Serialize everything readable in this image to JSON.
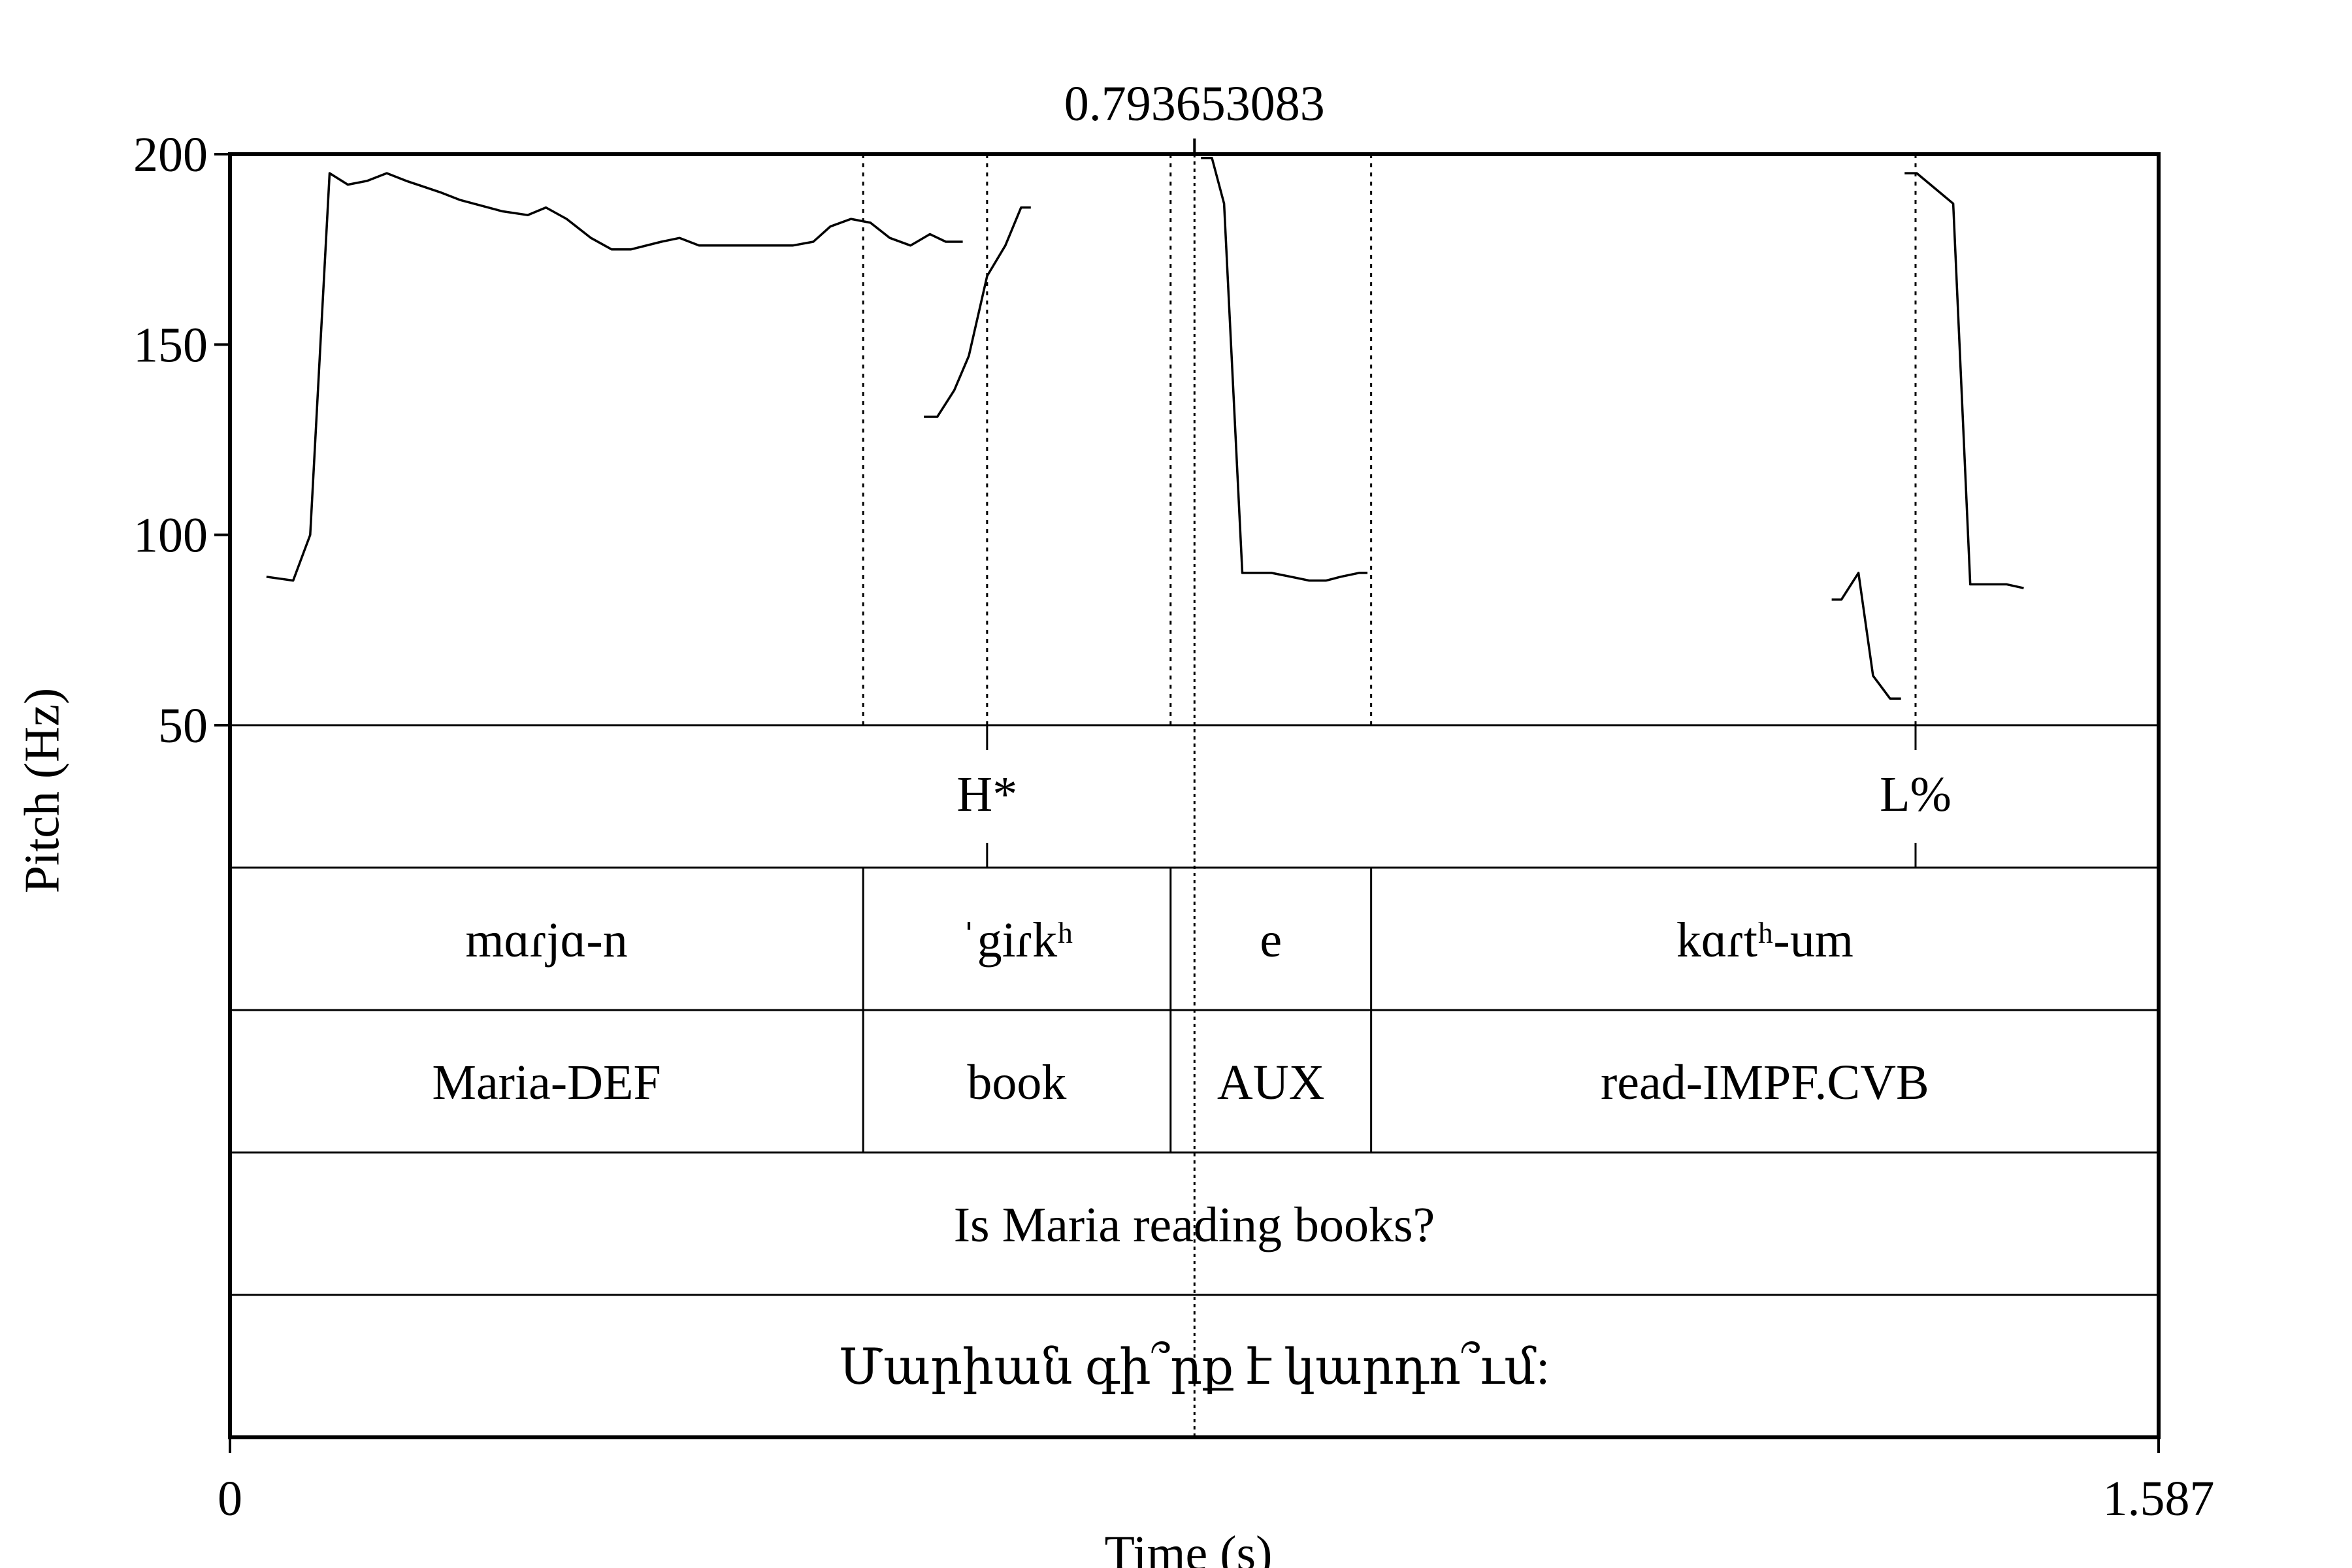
{
  "chart_data": {
    "type": "line",
    "title": "",
    "xlabel": "Time (s)",
    "ylabel": "Pitch (Hz)",
    "xlim": [
      0,
      1.587
    ],
    "ylim": [
      50,
      200
    ],
    "x_tick_labels": [
      "0",
      "1.587"
    ],
    "y_ticks": [
      50,
      100,
      150,
      200
    ],
    "y_tick_labels": [
      "50",
      "100",
      "150",
      "200"
    ],
    "cursor": {
      "time": 0.793653083,
      "label": "0.793653083"
    },
    "series": [
      {
        "points": [
          [
            0.03,
            89
          ],
          [
            0.052,
            88
          ],
          [
            0.066,
            100
          ],
          [
            0.082,
            195
          ],
          [
            0.097,
            192
          ],
          [
            0.113,
            193
          ],
          [
            0.129,
            195
          ],
          [
            0.145,
            193
          ],
          [
            0.173,
            190
          ],
          [
            0.189,
            188
          ],
          [
            0.224,
            185
          ],
          [
            0.245,
            184
          ],
          [
            0.26,
            186
          ],
          [
            0.277,
            183
          ],
          [
            0.297,
            178
          ],
          [
            0.314,
            175
          ],
          [
            0.33,
            175
          ],
          [
            0.355,
            177
          ],
          [
            0.37,
            178
          ],
          [
            0.386,
            176
          ],
          [
            0.417,
            176
          ],
          [
            0.44,
            176
          ],
          [
            0.463,
            176
          ],
          [
            0.48,
            177
          ],
          [
            0.494,
            181
          ],
          [
            0.511,
            183
          ],
          [
            0.527,
            182
          ],
          [
            0.543,
            178
          ],
          [
            0.56,
            176
          ],
          [
            0.576,
            179
          ],
          [
            0.589,
            177
          ],
          [
            0.603,
            177
          ]
        ]
      },
      {
        "points": [
          [
            0.571,
            131
          ],
          [
            0.582,
            131
          ],
          [
            0.596,
            138
          ],
          [
            0.608,
            147
          ],
          [
            0.623,
            168
          ],
          [
            0.638,
            176
          ],
          [
            0.651,
            186
          ],
          [
            0.659,
            186
          ]
        ]
      },
      {
        "points": [
          [
            0.799,
            199
          ],
          [
            0.808,
            199
          ],
          [
            0.818,
            187
          ],
          [
            0.833,
            90
          ],
          [
            0.857,
            90
          ],
          [
            0.873,
            89
          ],
          [
            0.888,
            88
          ],
          [
            0.902,
            88
          ],
          [
            0.914,
            89
          ],
          [
            0.929,
            90
          ],
          [
            0.936,
            90
          ]
        ]
      },
      {
        "points": [
          [
            1.318,
            83
          ],
          [
            1.326,
            83
          ],
          [
            1.34,
            90
          ],
          [
            1.352,
            63
          ],
          [
            1.366,
            57
          ],
          [
            1.375,
            57
          ]
        ]
      },
      {
        "points": [
          [
            1.378,
            195
          ],
          [
            1.388,
            195
          ],
          [
            1.403,
            191
          ],
          [
            1.418,
            187
          ],
          [
            1.432,
            87
          ],
          [
            1.448,
            87
          ],
          [
            1.462,
            87
          ],
          [
            1.476,
            86
          ]
        ]
      }
    ],
    "word_boundaries": [
      0.521,
      0.774,
      0.939
    ],
    "tone_tier": [
      {
        "time": 0.623,
        "label": "H*"
      },
      {
        "time": 1.387,
        "label": "L%"
      }
    ],
    "tiers": [
      {
        "boundaries": [
          0.521,
          0.774,
          0.939
        ],
        "labels": [
          "mɑɾjɑ-n",
          "ˈgiɾkʰ",
          "e",
          "kɑɾtʰ-um"
        ]
      },
      {
        "boundaries": [
          0.521,
          0.774,
          0.939
        ],
        "labels": [
          "Maria-DEF",
          "book",
          "AUX",
          "read-IMPF.CVB"
        ]
      },
      {
        "boundaries": [],
        "labels": [
          "Is Maria reading books?"
        ]
      },
      {
        "boundaries": [],
        "labels": [
          "Մարիան գի՞րք է կարդո՞ւմ:"
        ]
      }
    ]
  }
}
